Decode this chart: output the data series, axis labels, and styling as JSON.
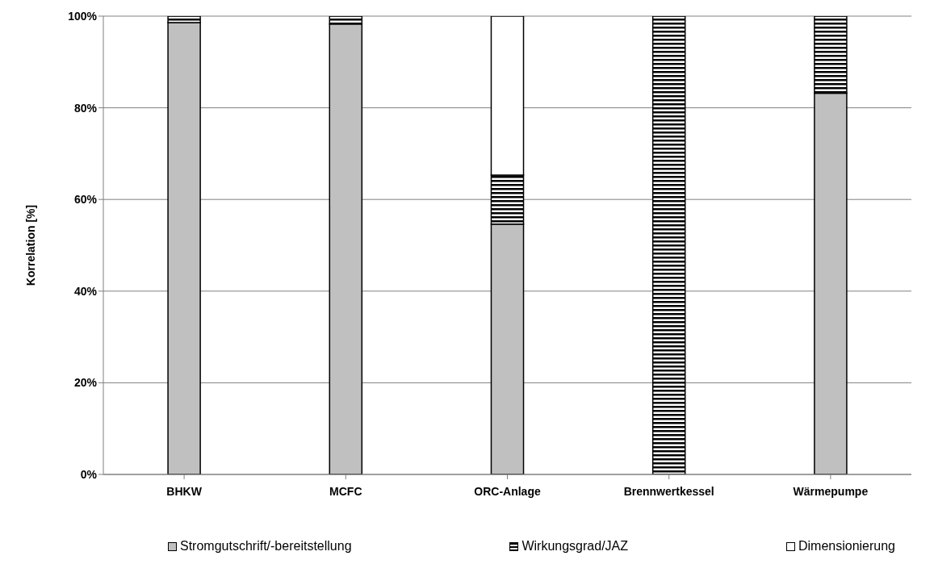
{
  "chart_data": {
    "type": "bar",
    "stacked": true,
    "ylabel": "Korrelation [%]",
    "categories": [
      "BHKW",
      "MCFC",
      "ORC-Anlage",
      "Brennwertkessel",
      "Wärmepumpe"
    ],
    "series": [
      {
        "name": "Stromgutschrift/-bereitstellung",
        "color": "#c0c0c0",
        "values": [
          98.6,
          98.3,
          54.6,
          0,
          83.2
        ]
      },
      {
        "name": "Wirkungsgrad/JAZ",
        "color": "#000000",
        "values": [
          1.4,
          1.7,
          10.7,
          100,
          16.8
        ]
      },
      {
        "name": "Dimensionierung",
        "color": "#ffffff",
        "values": [
          0,
          0,
          34.7,
          0,
          0
        ]
      }
    ],
    "ylim": [
      0,
      100
    ],
    "yticks": [
      {
        "value": 0,
        "label": "0%"
      },
      {
        "value": 20,
        "label": "20%"
      },
      {
        "value": 40,
        "label": "40%"
      },
      {
        "value": 60,
        "label": "60%"
      },
      {
        "value": 80,
        "label": "80%"
      },
      {
        "value": 100,
        "label": "100%"
      }
    ],
    "grid": "y",
    "legend": "bottom"
  }
}
